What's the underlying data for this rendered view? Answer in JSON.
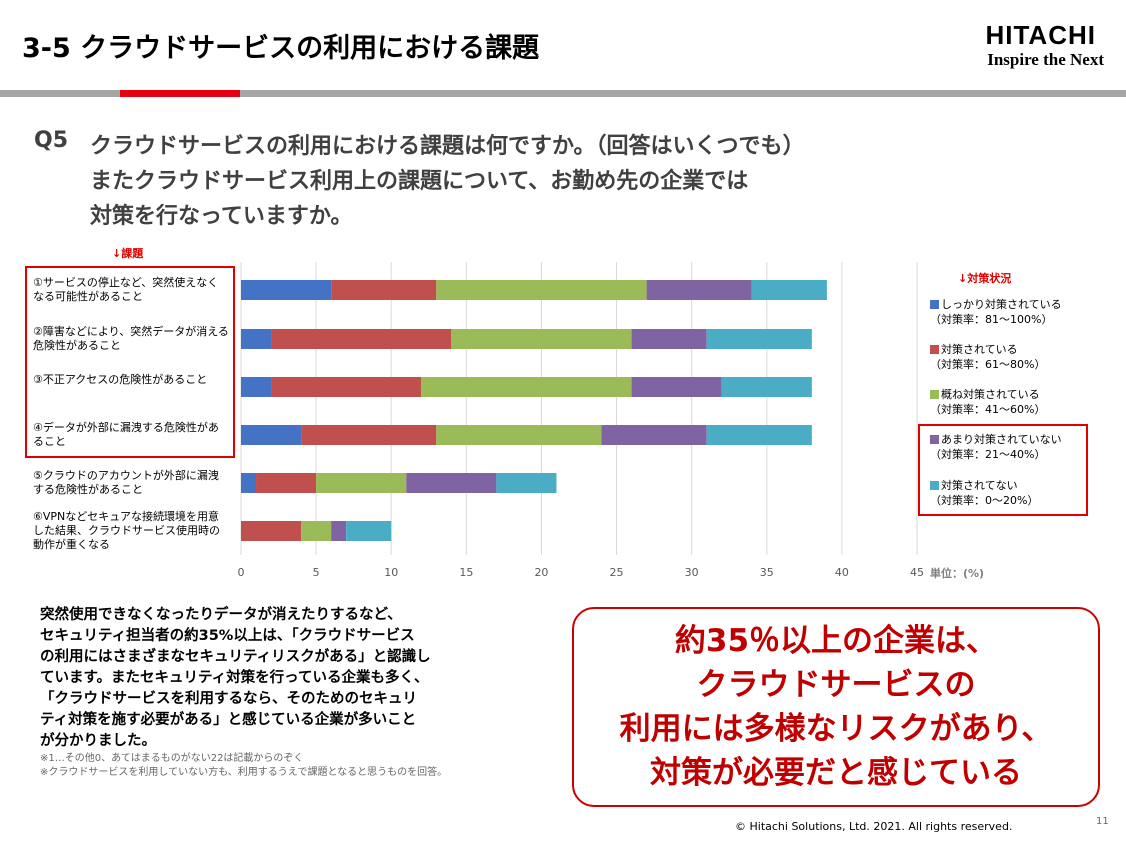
{
  "header": {
    "title": "3-5  クラウドサービスの利用における課題",
    "logo": "HITACHI",
    "tagline": "Inspire the Next"
  },
  "question": {
    "number": "Q5",
    "lines": [
      "クラウドサービスの利用における課題は何ですか。（回答はいくつでも）",
      "またクラウドサービス利用上の課題について、お勤め先の企業では",
      "対策を行なっていますか。"
    ]
  },
  "chart_data": {
    "type": "stacked-bar-horizontal",
    "category_heading": "↓課題",
    "legend_heading": "↓対策状況",
    "unit_label": "単位：(%)",
    "categories": [
      "①サービスの停止など、突然使えなくなる可能性があること",
      "②障害などにより、突然データが消える危険性があること",
      "③不正アクセスの危険性があること",
      "④データが外部に漏洩する危険性があること",
      "⑤クラウドのアカウントが外部に漏洩する危険性があること",
      "⑥VPNなどセキュアな接続環境を用意した結果、クラウドサービス使用時の動作が重くなる"
    ],
    "series": [
      {
        "name": "しっかり対策されている",
        "rate": "（対策率：81～100%）",
        "color": "#4472c4",
        "values": [
          6,
          2,
          2,
          4,
          1,
          0
        ]
      },
      {
        "name": "対策されている",
        "rate": "（対策率：61～80%）",
        "color": "#c0504d",
        "values": [
          7,
          12,
          10,
          9,
          4,
          4
        ]
      },
      {
        "name": "概ね対策されている",
        "rate": "（対策率：41～60%）",
        "color": "#9bbb59",
        "values": [
          14,
          12,
          14,
          11,
          6,
          2
        ]
      },
      {
        "name": "あまり対策されていない",
        "rate": "（対策率：21～40%）",
        "color": "#8064a2",
        "values": [
          7,
          5,
          6,
          7,
          6,
          1
        ]
      },
      {
        "name": "対策されてない",
        "rate": "（対策率：0～20%）",
        "color": "#4bacc6",
        "values": [
          5,
          7,
          6,
          7,
          4,
          3
        ]
      }
    ],
    "xlim": [
      0,
      45
    ],
    "xticks": [
      0,
      5,
      10,
      15,
      20,
      25,
      30,
      35,
      40,
      45
    ],
    "grid": true
  },
  "summary": {
    "lines": [
      "突然使用できなくなったりデータが消えたりするなど、",
      "セキュリティ担当者の約35%以上は、「クラウドサービス",
      "の利用にはさまざまなセキュリティリスクがある」と認識し",
      "ています。またセキュリティ対策を行っている企業も多く、",
      "「クラウドサービスを利用するなら、そのためのセキュリ",
      "ティ対策を施す必要がある」と感じている企業が多いこと",
      "が分かりました。"
    ],
    "notes": [
      "※1…その他0、あてはまるものがない22は記載からのぞく",
      "※クラウドサービスを利用していない方も、利用するうえで課題となると思うものを回答。"
    ]
  },
  "callout": {
    "lines": [
      "約35％以上の企業は、",
      "クラウドサービスの",
      "利用には多様なリスクがあり、",
      "対策が必要だと感じている"
    ]
  },
  "footer": {
    "copyright": "© Hitachi Solutions, Ltd. 2021. All rights reserved.",
    "page": "11"
  }
}
